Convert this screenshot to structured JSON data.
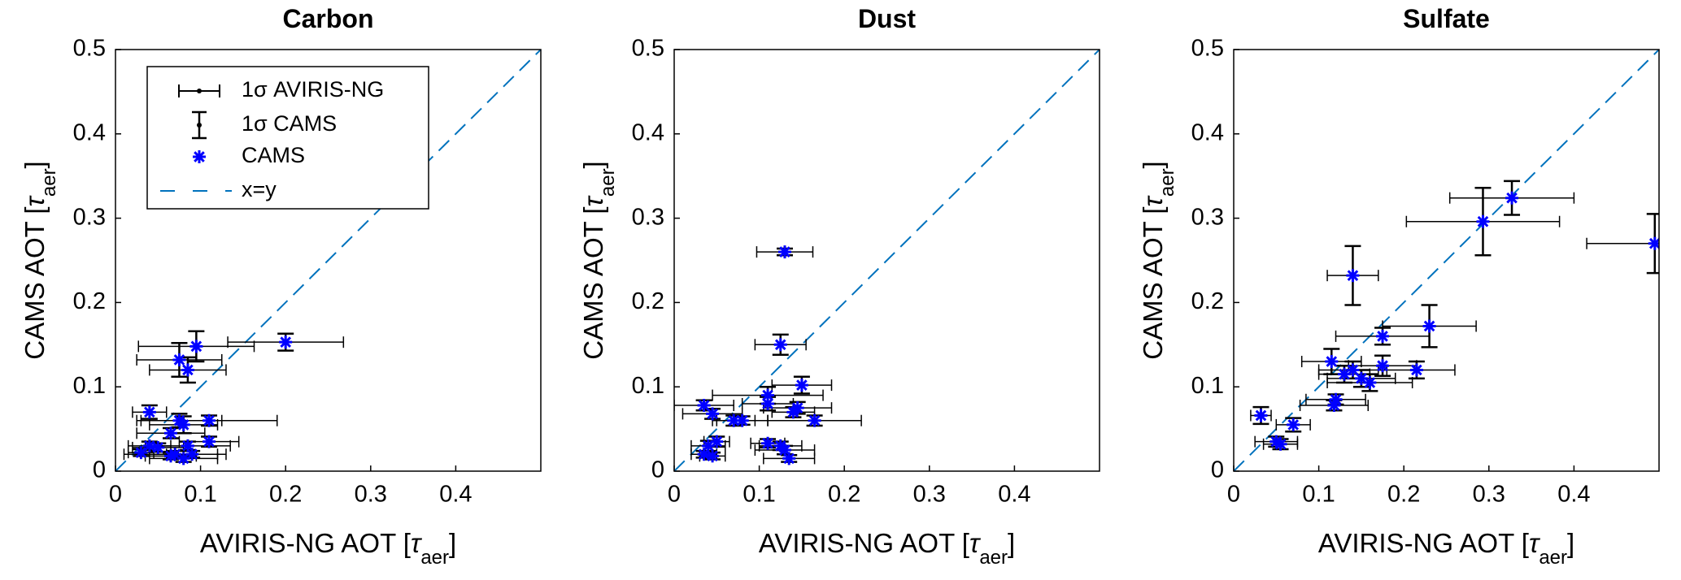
{
  "chart_data": [
    {
      "type": "scatter",
      "title": "Carbon",
      "xlabel": [
        "AVIRIS-NG AOT [",
        "τ",
        "aer",
        "]"
      ],
      "ylabel": [
        "CAMS AOT [",
        "τ",
        "aer",
        "]"
      ],
      "xlim": [
        0,
        0.5
      ],
      "ylim": [
        0,
        0.5
      ],
      "xticks": [
        0,
        0.1,
        0.2,
        0.3,
        0.4
      ],
      "yticks": [
        0,
        0.1,
        0.2,
        0.3,
        0.4,
        0.5
      ],
      "diagonal": {
        "name": "x=y",
        "color": "#0072bd"
      },
      "legend": {
        "corner": "top-left",
        "xerr": "1σ AVIRIS-NG",
        "yerr": "1σ CAMS"
      },
      "series": [
        {
          "name": "CAMS",
          "color": "#0000ff",
          "x": [
            0.2,
            0.095,
            0.075,
            0.085,
            0.04,
            0.11,
            0.075,
            0.08,
            0.065,
            0.04,
            0.05,
            0.11,
            0.085,
            0.07,
            0.08,
            0.065,
            0.09,
            0.03
          ],
          "values": [
            0.153,
            0.148,
            0.132,
            0.12,
            0.07,
            0.06,
            0.06,
            0.055,
            0.045,
            0.03,
            0.028,
            0.035,
            0.03,
            0.02,
            0.015,
            0.018,
            0.02,
            0.022
          ],
          "xerr": [
            0.068,
            0.068,
            0.05,
            0.045,
            0.02,
            0.08,
            0.05,
            0.04,
            0.04,
            0.025,
            0.03,
            0.035,
            0.05,
            0.06,
            0.04,
            0.03,
            0.03,
            0.015
          ],
          "yerr": [
            0.01,
            0.018,
            0.02,
            0.015,
            0.008,
            0.006,
            0.008,
            0.01,
            0.006,
            0.005,
            0.005,
            0.006,
            0.005,
            0.004,
            0.004,
            0.004,
            0.004,
            0.004
          ]
        }
      ]
    },
    {
      "type": "scatter",
      "title": "Dust",
      "xlabel": [
        "AVIRIS-NG AOT [",
        "τ",
        "aer",
        "]"
      ],
      "ylabel": [
        "CAMS AOT [",
        "τ",
        "aer",
        "]"
      ],
      "xlim": [
        0,
        0.5
      ],
      "ylim": [
        0,
        0.5
      ],
      "xticks": [
        0,
        0.1,
        0.2,
        0.3,
        0.4
      ],
      "yticks": [
        0,
        0.1,
        0.2,
        0.3,
        0.4,
        0.5
      ],
      "diagonal": {
        "color": "#0072bd"
      },
      "series": [
        {
          "color": "#0000ff",
          "x": [
            0.13,
            0.125,
            0.15,
            0.11,
            0.11,
            0.145,
            0.14,
            0.035,
            0.045,
            0.07,
            0.08,
            0.165,
            0.05,
            0.04,
            0.11,
            0.125,
            0.13,
            0.035,
            0.045,
            0.135
          ],
          "values": [
            0.26,
            0.15,
            0.102,
            0.09,
            0.08,
            0.075,
            0.07,
            0.078,
            0.068,
            0.06,
            0.06,
            0.06,
            0.035,
            0.03,
            0.033,
            0.03,
            0.025,
            0.02,
            0.018,
            0.015
          ],
          "xerr": [
            0.033,
            0.03,
            0.035,
            0.065,
            0.03,
            0.04,
            0.025,
            0.035,
            0.035,
            0.025,
            0.03,
            0.055,
            0.015,
            0.02,
            0.02,
            0.025,
            0.035,
            0.015,
            0.015,
            0.03
          ],
          "yerr": [
            0.004,
            0.012,
            0.01,
            0.01,
            0.008,
            0.007,
            0.006,
            0.006,
            0.006,
            0.006,
            0.005,
            0.006,
            0.006,
            0.006,
            0.005,
            0.005,
            0.005,
            0.004,
            0.004,
            0.004
          ]
        }
      ]
    },
    {
      "type": "scatter",
      "title": "Sulfate",
      "xlabel": [
        "AVIRIS-NG AOT [",
        "τ",
        "aer",
        "]"
      ],
      "ylabel": [
        "CAMS AOT [",
        "τ",
        "aer",
        "]"
      ],
      "xlim": [
        0,
        0.5
      ],
      "ylim": [
        0,
        0.5
      ],
      "xticks": [
        0,
        0.1,
        0.2,
        0.3,
        0.4
      ],
      "yticks": [
        0,
        0.1,
        0.2,
        0.3,
        0.4,
        0.5
      ],
      "diagonal": {
        "color": "#0072bd"
      },
      "series": [
        {
          "color": "#0000ff",
          "x": [
            0.327,
            0.293,
            0.495,
            0.14,
            0.23,
            0.175,
            0.115,
            0.14,
            0.13,
            0.15,
            0.16,
            0.175,
            0.215,
            0.12,
            0.118,
            0.07,
            0.032,
            0.05,
            0.055
          ],
          "values": [
            0.324,
            0.296,
            0.27,
            0.232,
            0.172,
            0.16,
            0.13,
            0.12,
            0.115,
            0.11,
            0.105,
            0.125,
            0.12,
            0.085,
            0.078,
            0.055,
            0.066,
            0.035,
            0.032
          ],
          "xerr": [
            0.073,
            0.09,
            0.08,
            0.03,
            0.055,
            0.055,
            0.035,
            0.04,
            0.03,
            0.04,
            0.05,
            0.04,
            0.045,
            0.035,
            0.04,
            0.02,
            0.012,
            0.025,
            0.02
          ],
          "yerr": [
            0.02,
            0.04,
            0.035,
            0.035,
            0.025,
            0.01,
            0.015,
            0.01,
            0.01,
            0.01,
            0.01,
            0.012,
            0.01,
            0.006,
            0.006,
            0.008,
            0.01,
            0.006,
            0.006
          ]
        }
      ]
    }
  ]
}
